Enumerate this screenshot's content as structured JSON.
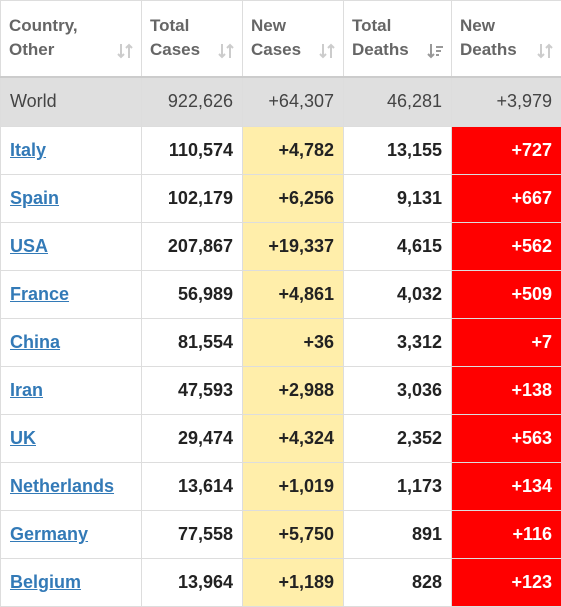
{
  "headers": [
    {
      "line1": "Country,",
      "line2": "Other",
      "sort": "unsorted"
    },
    {
      "line1": "Total",
      "line2": "Cases",
      "sort": "unsorted"
    },
    {
      "line1": "New",
      "line2": "Cases",
      "sort": "unsorted"
    },
    {
      "line1": "Total",
      "line2": "Deaths",
      "sort": "sorted-desc"
    },
    {
      "line1": "New",
      "line2": "Deaths",
      "sort": "unsorted"
    }
  ],
  "world": {
    "country": "World",
    "total_cases": "922,626",
    "new_cases": "+64,307",
    "total_deaths": "46,281",
    "new_deaths": "+3,979"
  },
  "rows": [
    {
      "country": "Italy",
      "total_cases": "110,574",
      "new_cases": "+4,782",
      "total_deaths": "13,155",
      "new_deaths": "+727"
    },
    {
      "country": "Spain",
      "total_cases": "102,179",
      "new_cases": "+6,256",
      "total_deaths": "9,131",
      "new_deaths": "+667"
    },
    {
      "country": "USA",
      "total_cases": "207,867",
      "new_cases": "+19,337",
      "total_deaths": "4,615",
      "new_deaths": "+562"
    },
    {
      "country": "France",
      "total_cases": "56,989",
      "new_cases": "+4,861",
      "total_deaths": "4,032",
      "new_deaths": "+509"
    },
    {
      "country": "China",
      "total_cases": "81,554",
      "new_cases": "+36",
      "total_deaths": "3,312",
      "new_deaths": "+7"
    },
    {
      "country": "Iran",
      "total_cases": "47,593",
      "new_cases": "+2,988",
      "total_deaths": "3,036",
      "new_deaths": "+138"
    },
    {
      "country": "UK",
      "total_cases": "29,474",
      "new_cases": "+4,324",
      "total_deaths": "2,352",
      "new_deaths": "+563"
    },
    {
      "country": "Netherlands",
      "total_cases": "13,614",
      "new_cases": "+1,019",
      "total_deaths": "1,173",
      "new_deaths": "+134"
    },
    {
      "country": "Germany",
      "total_cases": "77,558",
      "new_cases": "+5,750",
      "total_deaths": "891",
      "new_deaths": "+116"
    },
    {
      "country": "Belgium",
      "total_cases": "13,964",
      "new_cases": "+1,189",
      "total_deaths": "828",
      "new_deaths": "+123"
    }
  ],
  "colors": {
    "link": "#337ab7",
    "new_cases_bg": "#ffeeaa",
    "new_deaths_bg": "#ff0000",
    "world_bg": "#dfdfdf"
  }
}
